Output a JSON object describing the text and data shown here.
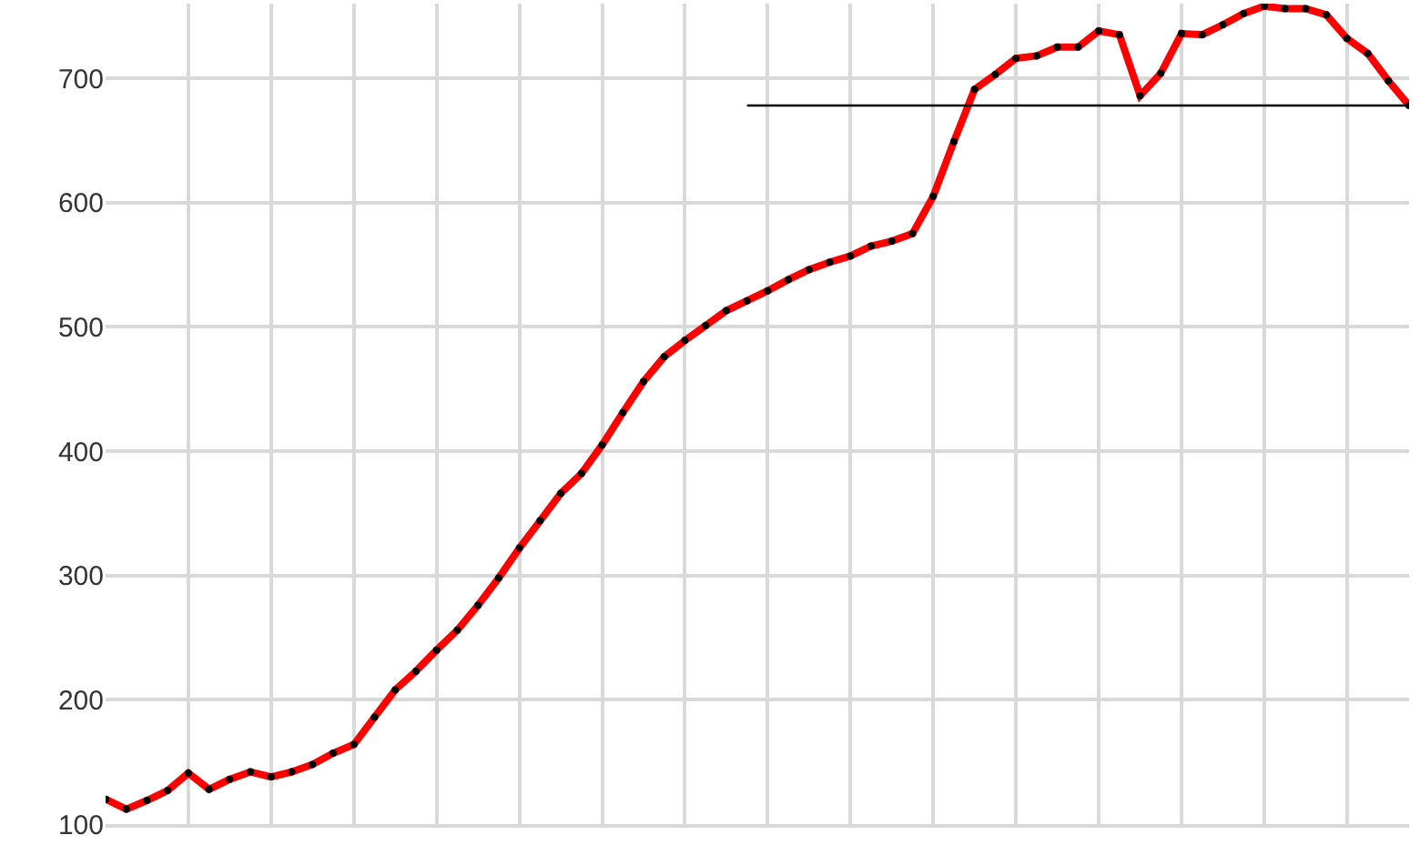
{
  "chart_data": {
    "type": "line",
    "categories": [
      null,
      null,
      null,
      null,
      null,
      null,
      null,
      null,
      null,
      null,
      null,
      null,
      null,
      null,
      null,
      null,
      null,
      null,
      null,
      null,
      null,
      null,
      null,
      null,
      null,
      null,
      null,
      null,
      null,
      null,
      null,
      null,
      null,
      null,
      null,
      null,
      null,
      null,
      null,
      null,
      null,
      null,
      null,
      null,
      null,
      null,
      null,
      null,
      null,
      null,
      null,
      null,
      null,
      null,
      null,
      null,
      null,
      null,
      null,
      null,
      null,
      null,
      null,
      null
    ],
    "series": [
      {
        "color": "#ff0000",
        "marker": "circle",
        "values": [
          120,
          112,
          119,
          127,
          141,
          128,
          136,
          142,
          138,
          142,
          148,
          157,
          164,
          186,
          208,
          223,
          240,
          256,
          276,
          298,
          322,
          344,
          366,
          382,
          405,
          431,
          456,
          476,
          489,
          501,
          513,
          521,
          529,
          538,
          546,
          552,
          557,
          565,
          569,
          575,
          605,
          649,
          691,
          703,
          716,
          718,
          725,
          725,
          738,
          735,
          686,
          704,
          736,
          735,
          743,
          752,
          758,
          756,
          756,
          751,
          732,
          720,
          698,
          678
        ]
      },
      {
        "color": "#000000",
        "marker": "none",
        "values": [
          null,
          null,
          null,
          null,
          null,
          null,
          null,
          null,
          null,
          null,
          null,
          null,
          null,
          null,
          null,
          null,
          null,
          null,
          null,
          null,
          null,
          null,
          null,
          null,
          null,
          null,
          null,
          null,
          null,
          null,
          null,
          678,
          678,
          678,
          678,
          678,
          678,
          678,
          678,
          678,
          678,
          678,
          678,
          678,
          678,
          678,
          678,
          678,
          678,
          678,
          678,
          678,
          678,
          678,
          678,
          678,
          678,
          678,
          678,
          678,
          678,
          678,
          678,
          678
        ]
      }
    ],
    "ylim": [
      100,
      760
    ],
    "yticks": [
      100,
      200,
      300,
      400,
      500,
      600,
      700
    ],
    "tick_labels": "y",
    "grid": true
  }
}
